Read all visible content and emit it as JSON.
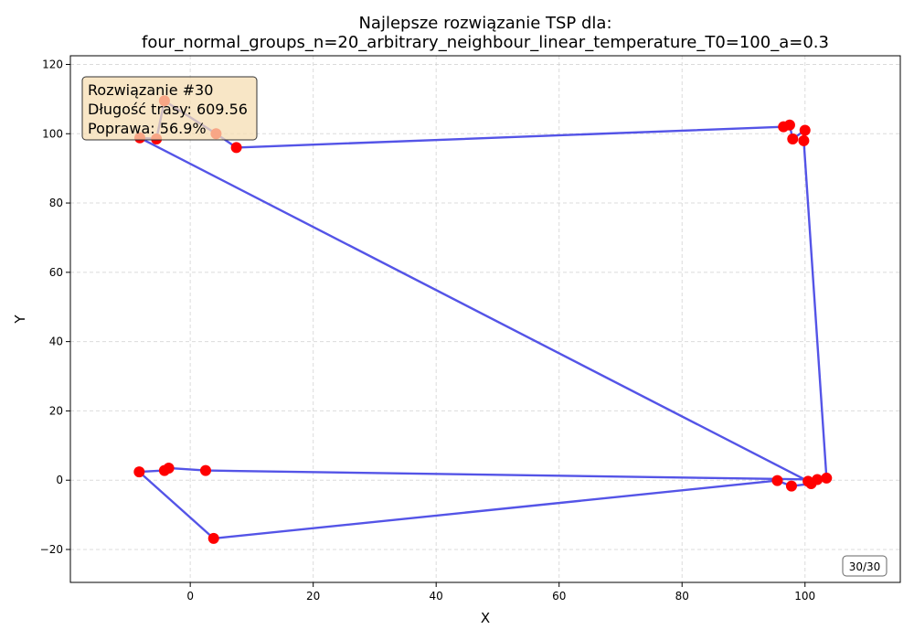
{
  "chart_data": {
    "type": "line",
    "title_line1": "Najlepsze rozwiązanie TSP dla:",
    "title_line2": "four_normal_groups_n=20_arbitrary_neighbour_linear_temperature_T0=100_a=0.3",
    "xlabel": "X",
    "ylabel": "Y",
    "xlim": [
      -19.5,
      115.5
    ],
    "ylim": [
      -29.5,
      122.5
    ],
    "xticks": [
      0,
      20,
      40,
      60,
      80,
      100
    ],
    "yticks": [
      -20,
      0,
      20,
      40,
      60,
      80,
      100,
      120
    ],
    "grid": true,
    "route_color": "#4b4be6",
    "point_color": "#ff0000",
    "route": [
      {
        "x": 103.5,
        "y": 0.6
      },
      {
        "x": 99.8,
        "y": 98.0
      },
      {
        "x": 100.0,
        "y": 101.0
      },
      {
        "x": 98.0,
        "y": 98.5
      },
      {
        "x": 97.5,
        "y": 102.5
      },
      {
        "x": 96.5,
        "y": 102.0
      },
      {
        "x": 7.5,
        "y": 96.0
      },
      {
        "x": 4.2,
        "y": 100.0
      },
      {
        "x": -4.2,
        "y": 109.5
      },
      {
        "x": -5.5,
        "y": 98.5
      },
      {
        "x": -8.2,
        "y": 98.8
      },
      {
        "x": 100.5,
        "y": -0.3
      },
      {
        "x": 102.0,
        "y": 0.2
      },
      {
        "x": 2.5,
        "y": 2.8
      },
      {
        "x": -3.5,
        "y": 3.5
      },
      {
        "x": -4.2,
        "y": 2.8
      },
      {
        "x": -8.3,
        "y": 2.4
      },
      {
        "x": 3.8,
        "y": -16.8
      },
      {
        "x": 95.5,
        "y": -0.1
      },
      {
        "x": 97.8,
        "y": -1.7
      },
      {
        "x": 101.0,
        "y": -1.0
      }
    ],
    "info_box": {
      "line1": "Rozwiązanie #30",
      "line2": "Długość trasy: 609.56",
      "line3": "Poprawa: 56.9%",
      "background": "#f5deb3"
    },
    "frame_label": "30/30"
  }
}
